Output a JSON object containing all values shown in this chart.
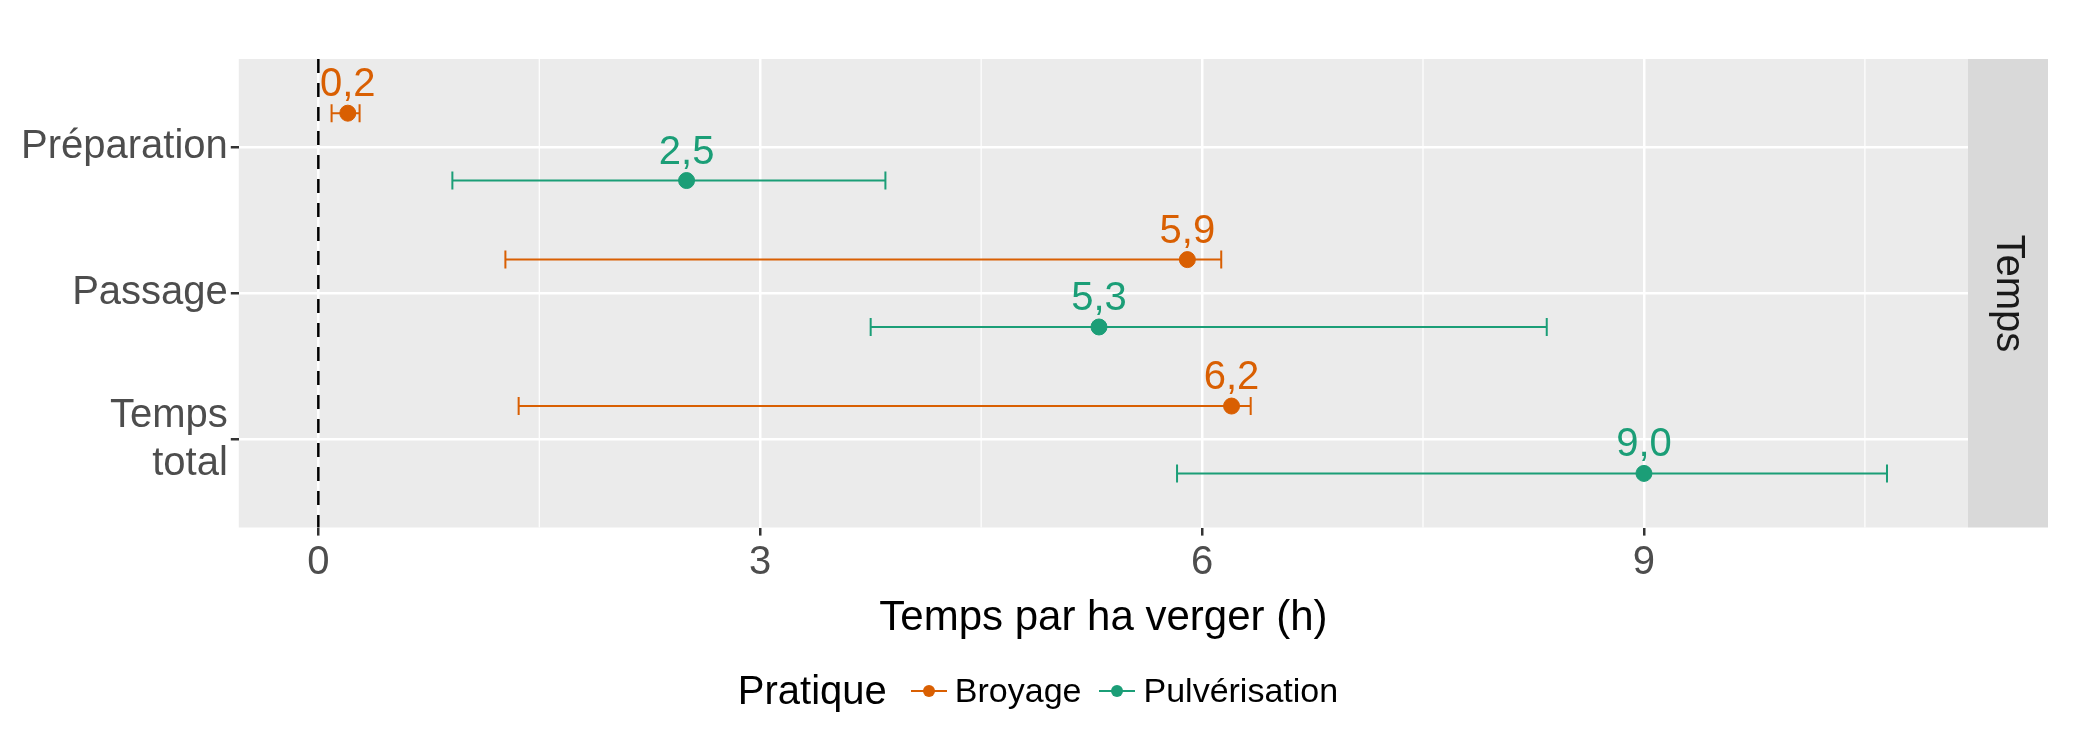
{
  "chart_data": {
    "type": "scatter",
    "orientation": "horizontal",
    "categories": [
      "Préparation",
      "Passage",
      "Temps total"
    ],
    "xlabel": "Temps par ha verger (h)",
    "legend_title": "Pratique",
    "legend": "bottom",
    "xlim": [
      -0.54,
      11.2
    ],
    "xticks": [
      0,
      3,
      6,
      9
    ],
    "grid": true,
    "marker": "circle",
    "annotations": [
      "Temps"
    ],
    "ref_lines": [
      {
        "axis": "x",
        "value": 0,
        "line_style": "dashed",
        "color": "#000000"
      }
    ],
    "series": [
      {
        "name": "Broyage",
        "color": "#d95f02",
        "values": [
          0.2,
          5.9,
          6.2
        ],
        "errors": [
          [
            0.09,
            0.28
          ],
          [
            1.27,
            6.13
          ],
          [
            1.36,
            6.33
          ]
        ],
        "value_labels": [
          "0,2",
          "5,9",
          "6,2"
        ]
      },
      {
        "name": "Pulvérisation",
        "color": "#1b9e77",
        "values": [
          2.5,
          5.3,
          9.0
        ],
        "errors": [
          [
            0.91,
            3.85
          ],
          [
            3.75,
            8.34
          ],
          [
            5.83,
            10.65
          ]
        ],
        "value_labels": [
          "2,5",
          "5,3",
          "9,0"
        ]
      }
    ]
  }
}
